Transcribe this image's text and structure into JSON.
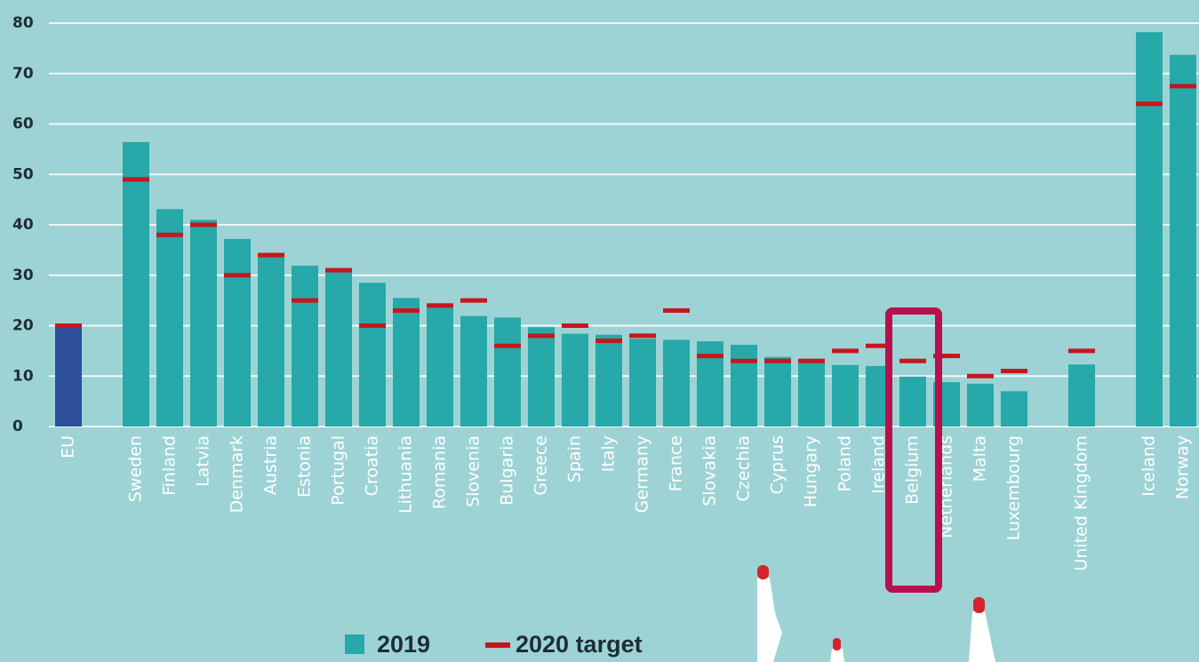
{
  "chart_data": {
    "type": "bar",
    "categories": [
      "EU",
      null,
      "Sweden",
      "Finland",
      "Latvia",
      "Denmark",
      "Austria",
      "Estonia",
      "Portugal",
      "Croatia",
      "Lithuania",
      "Romania",
      "Slovenia",
      "Bulgaria",
      "Greece",
      "Spain",
      "Italy",
      "Germany",
      "France",
      "Slovakia",
      "Czechia",
      "Cyprus",
      "Hungary",
      "Poland",
      "Ireland",
      "Belgium",
      "Netherlands",
      "Malta",
      "Luxembourg",
      null,
      "United Kingdom",
      null,
      "Iceland",
      "Norway"
    ],
    "series": [
      {
        "name": "2019",
        "color": "#26a9a8",
        "colors": [
          "#2e4f9a",
          null,
          "#26a9a8",
          "#26a9a8",
          "#26a9a8",
          "#26a9a8",
          "#26a9a8",
          "#26a9a8",
          "#26a9a8",
          "#26a9a8",
          "#26a9a8",
          "#26a9a8",
          "#26a9a8",
          "#26a9a8",
          "#26a9a8",
          "#26a9a8",
          "#26a9a8",
          "#26a9a8",
          "#26a9a8",
          "#26a9a8",
          "#26a9a8",
          "#26a9a8",
          "#26a9a8",
          "#26a9a8",
          "#26a9a8",
          "#26a9a8",
          "#26a9a8",
          "#26a9a8",
          "#26a9a8",
          null,
          "#26a9a8",
          null,
          "#26a9a8",
          "#26a9a8"
        ],
        "values": [
          19.7,
          null,
          56.4,
          43.1,
          41,
          37.2,
          33.6,
          31.9,
          30.6,
          28.5,
          25.5,
          24.3,
          21.9,
          21.6,
          19.7,
          18.4,
          18.2,
          17.4,
          17.2,
          16.9,
          16.2,
          13.8,
          12.6,
          12.2,
          12,
          9.9,
          8.8,
          8.5,
          7,
          null,
          12.3,
          null,
          78.2,
          73.7
        ]
      },
      {
        "name": "2020 target",
        "color": "#c8161d",
        "values": [
          20,
          null,
          49,
          38,
          40,
          30,
          34,
          25,
          31,
          20,
          23,
          24,
          25,
          16,
          18,
          20,
          17,
          18,
          23,
          14,
          13,
          13,
          13,
          15,
          16,
          13,
          14,
          10,
          11,
          null,
          15,
          null,
          64,
          67.5
        ]
      }
    ],
    "ylim": [
      0,
      80
    ],
    "yticks": [
      0,
      10,
      20,
      30,
      40,
      50,
      60,
      70,
      80
    ],
    "grid": true
  }
}
